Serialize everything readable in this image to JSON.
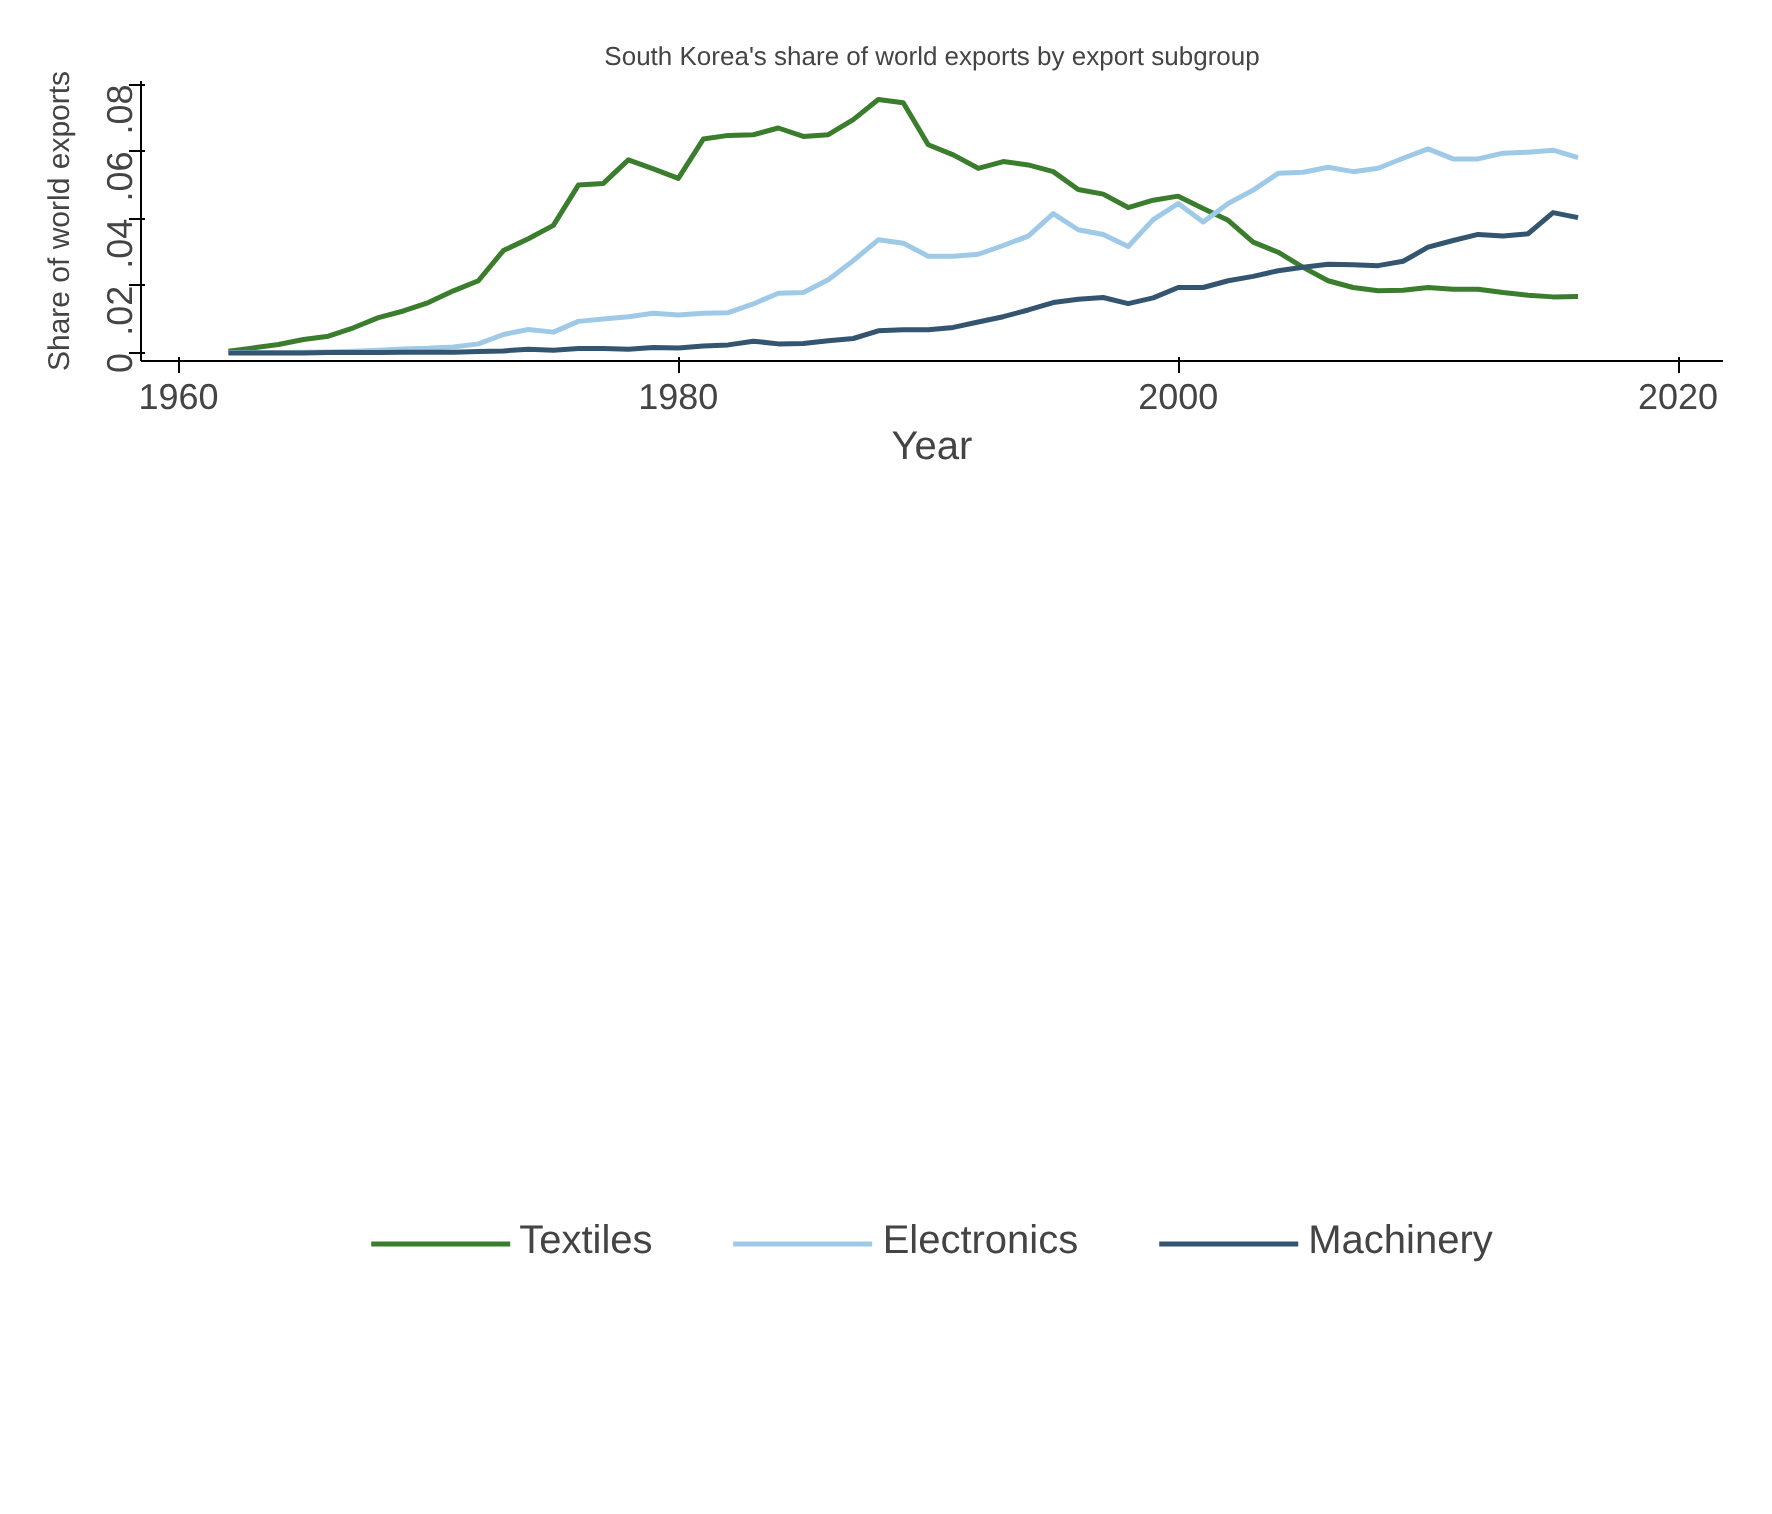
{
  "chart_data": {
    "type": "line",
    "title": "South Korea's share of world exports by export subgroup",
    "xlabel": "Year",
    "ylabel": "Share of world exports",
    "x": [
      1962,
      1963,
      1964,
      1965,
      1966,
      1967,
      1968,
      1969,
      1970,
      1971,
      1972,
      1973,
      1974,
      1975,
      1976,
      1977,
      1978,
      1979,
      1980,
      1981,
      1982,
      1983,
      1984,
      1985,
      1986,
      1987,
      1988,
      1989,
      1990,
      1991,
      1992,
      1993,
      1994,
      1995,
      1996,
      1997,
      1998,
      1999,
      2000,
      2001,
      2002,
      2003,
      2004,
      2005,
      2006,
      2007,
      2008,
      2009,
      2010,
      2011,
      2012,
      2013,
      2014,
      2015,
      2016
    ],
    "xlim": [
      1958.5,
      2021.8
    ],
    "xticks": [
      1960,
      1980,
      2000,
      2020
    ],
    "ylim": [
      -0.0024,
      0.081
    ],
    "yticks": [
      {
        "value": 0,
        "label": "0"
      },
      {
        "value": 0.02,
        "label": ".02"
      },
      {
        "value": 0.04,
        "label": ".04"
      },
      {
        "value": 0.06,
        "label": ".06"
      },
      {
        "value": 0.08,
        "label": ".08"
      }
    ],
    "grid": false,
    "legend": "bottom",
    "line_style": "solid",
    "marker": "none",
    "series": [
      {
        "name": "Textiles",
        "color": "#3a7d2c",
        "values": [
          0.0005,
          0.0015,
          0.0025,
          0.004,
          0.005,
          0.0075,
          0.0105,
          0.0125,
          0.015,
          0.0185,
          0.0215,
          0.0305,
          0.034,
          0.038,
          0.05,
          0.0505,
          0.0575,
          0.0548,
          0.052,
          0.0637,
          0.0648,
          0.065,
          0.067,
          0.0645,
          0.065,
          0.0695,
          0.0755,
          0.0745,
          0.062,
          0.059,
          0.055,
          0.057,
          0.056,
          0.054,
          0.0487,
          0.0473,
          0.0433,
          0.0455,
          0.0467,
          0.043,
          0.0395,
          0.033,
          0.03,
          0.0255,
          0.0215,
          0.0195,
          0.0185,
          0.0187,
          0.0195,
          0.019,
          0.019,
          0.018,
          0.0172,
          0.0167,
          0.0168
        ]
      },
      {
        "name": "Electronics",
        "color": "#9ecae8",
        "values": [
          0.0001,
          0.0001,
          0.0001,
          0.0002,
          0.0003,
          0.0005,
          0.0008,
          0.0012,
          0.0014,
          0.0018,
          0.0027,
          0.0055,
          0.007,
          0.0062,
          0.0094,
          0.0101,
          0.0108,
          0.0118,
          0.0113,
          0.0118,
          0.012,
          0.0146,
          0.0178,
          0.018,
          0.0218,
          0.0275,
          0.0337,
          0.0327,
          0.0288,
          0.0288,
          0.0294,
          0.032,
          0.0348,
          0.0415,
          0.0367,
          0.0353,
          0.0317,
          0.0397,
          0.0445,
          0.039,
          0.0445,
          0.0485,
          0.0535,
          0.0538,
          0.0553,
          0.054,
          0.055,
          0.058,
          0.0608,
          0.0578,
          0.0578,
          0.0595,
          0.0598,
          0.0604,
          0.0582
        ]
      },
      {
        "name": "Machinery",
        "color": "#34556f",
        "values": [
          0,
          0,
          0,
          0,
          0.0001,
          0.0001,
          0.0001,
          0.0002,
          0.0002,
          0.0002,
          0.0004,
          0.0006,
          0.0011,
          0.0008,
          0.0013,
          0.0013,
          0.0011,
          0.0016,
          0.0015,
          0.0021,
          0.0024,
          0.0035,
          0.0027,
          0.0028,
          0.0036,
          0.0043,
          0.0066,
          0.0069,
          0.0069,
          0.0076,
          0.0092,
          0.0108,
          0.0128,
          0.015,
          0.016,
          0.0165,
          0.0147,
          0.0164,
          0.0195,
          0.0195,
          0.0215,
          0.0228,
          0.0245,
          0.0255,
          0.0264,
          0.0263,
          0.026,
          0.0273,
          0.0315,
          0.0335,
          0.0353,
          0.0348,
          0.0355,
          0.0418,
          0.0403
        ]
      }
    ]
  }
}
